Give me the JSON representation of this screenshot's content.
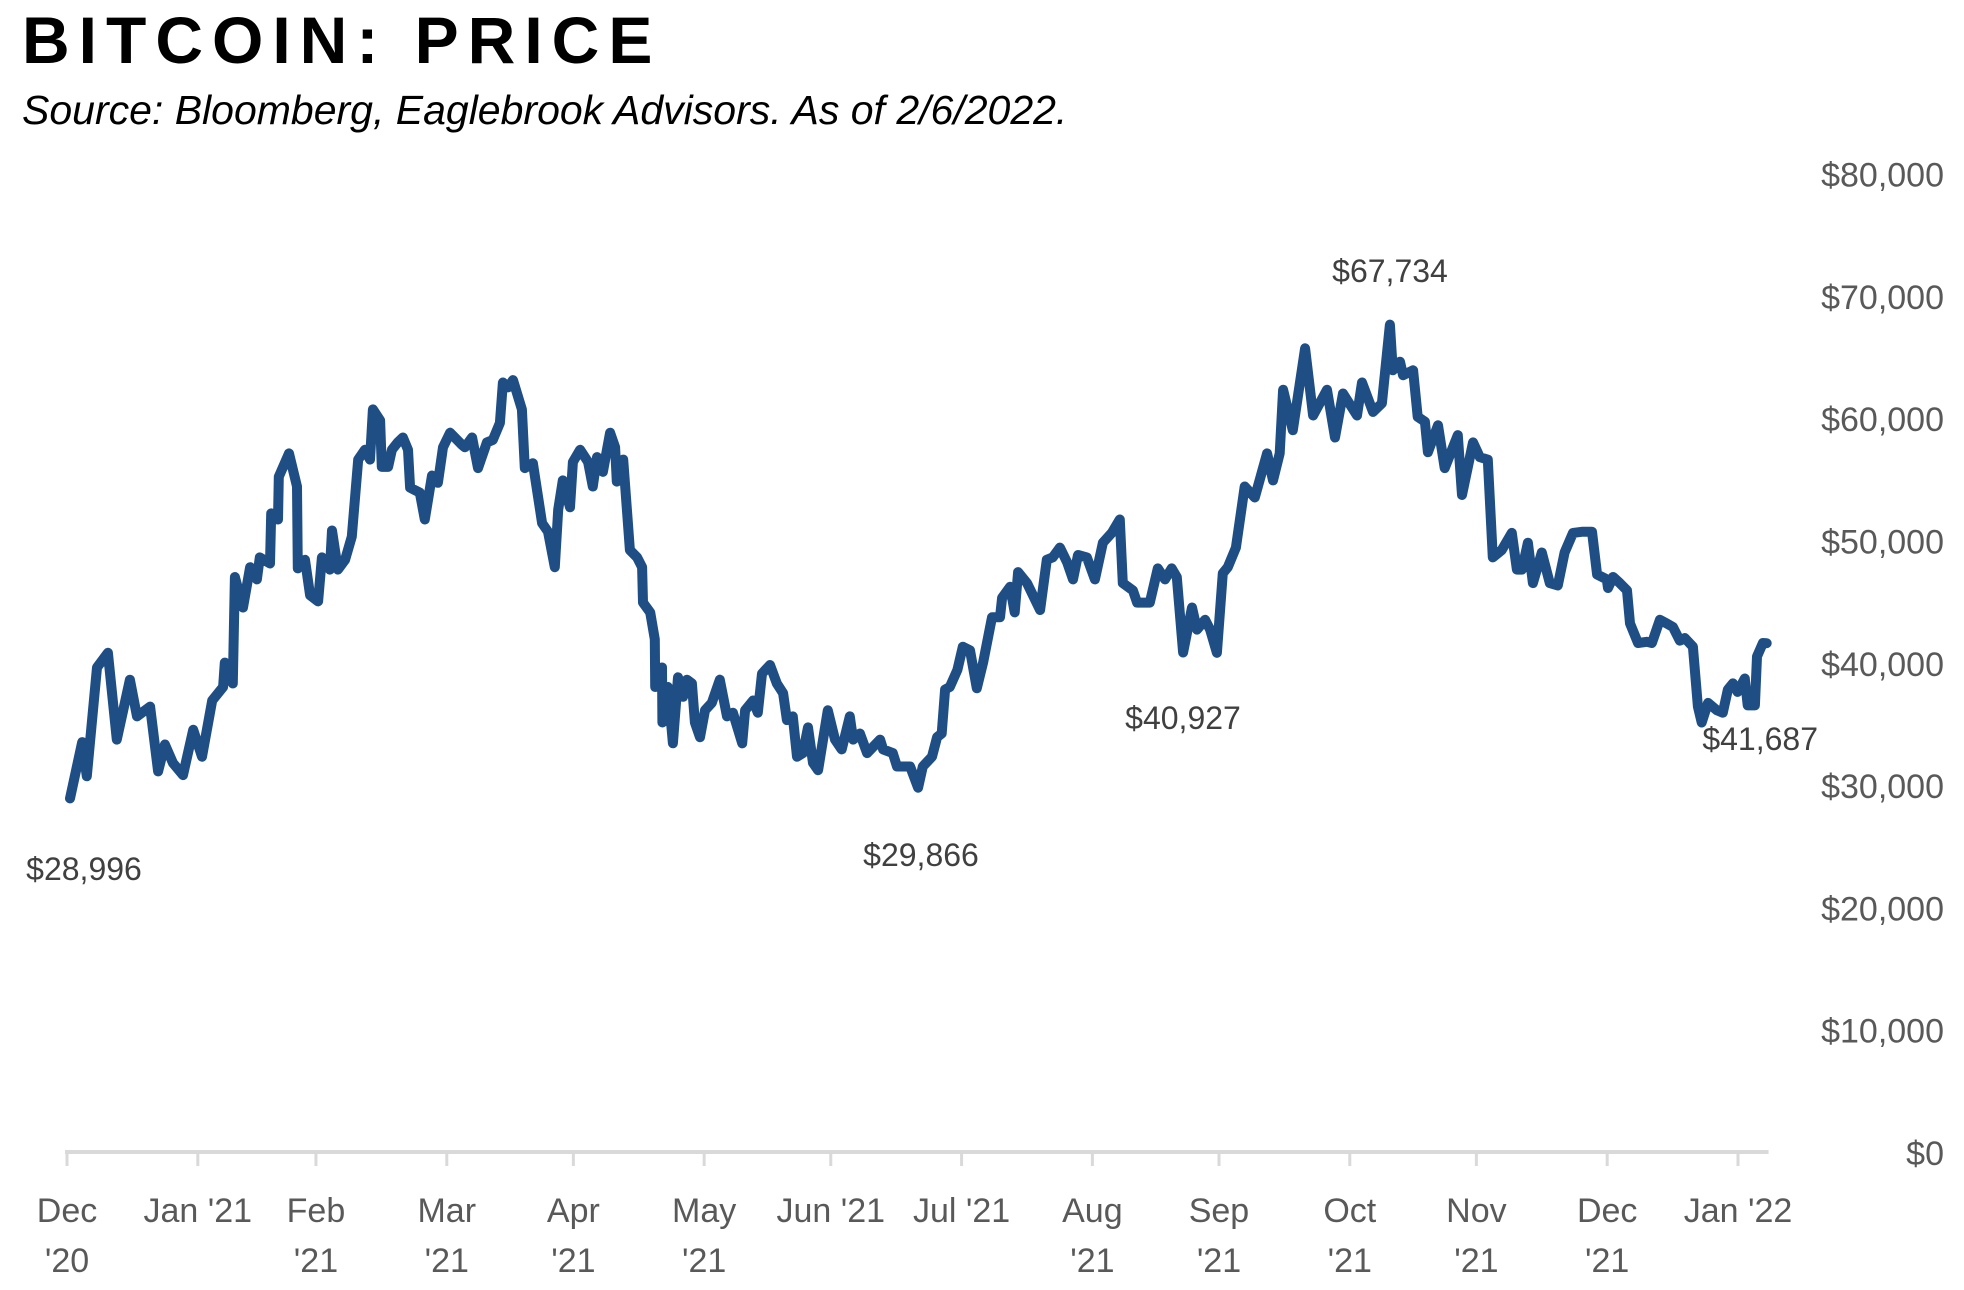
{
  "chart_data": {
    "type": "line",
    "title": "BITCOIN: PRICE",
    "subtitle": "Source: Bloomberg, Eaglebrook Advisors. As of 2/6/2022.",
    "xlabel": "",
    "ylabel": "",
    "x_unit": "days since start of axis (Dec '20)",
    "xlim": [
      0,
      403
    ],
    "ylim": [
      0,
      80000
    ],
    "y_axis_side": "right",
    "grid": false,
    "legend": "none",
    "line_color": "#1F4E85",
    "x_ticks": [
      {
        "day": 0,
        "line1": "Dec",
        "line2": "'20"
      },
      {
        "day": 31,
        "line1": "Jan '21",
        "line2": ""
      },
      {
        "day": 59,
        "line1": "Feb",
        "line2": "'21"
      },
      {
        "day": 90,
        "line1": "Mar",
        "line2": "'21"
      },
      {
        "day": 120,
        "line1": "Apr",
        "line2": "'21"
      },
      {
        "day": 151,
        "line1": "May",
        "line2": "'21"
      },
      {
        "day": 181,
        "line1": "Jun '21",
        "line2": ""
      },
      {
        "day": 212,
        "line1": "Jul '21",
        "line2": ""
      },
      {
        "day": 243,
        "line1": "Aug",
        "line2": "'21"
      },
      {
        "day": 273,
        "line1": "Sep",
        "line2": "'21"
      },
      {
        "day": 304,
        "line1": "Oct",
        "line2": "'21"
      },
      {
        "day": 334,
        "line1": "Nov",
        "line2": "'21"
      },
      {
        "day": 365,
        "line1": "Dec",
        "line2": "'21"
      },
      {
        "day": 396,
        "line1": "Jan '22",
        "line2": ""
      }
    ],
    "y_ticks": [
      {
        "value": 0,
        "label": "$0"
      },
      {
        "value": 10000,
        "label": "$10,000"
      },
      {
        "value": 20000,
        "label": "$20,000"
      },
      {
        "value": 30000,
        "label": "$30,000"
      },
      {
        "value": 40000,
        "label": "$40,000"
      },
      {
        "value": 50000,
        "label": "$50,000"
      },
      {
        "value": 60000,
        "label": "$60,000"
      },
      {
        "value": 70000,
        "label": "$70,000"
      },
      {
        "value": 80000,
        "label": "$80,000"
      }
    ],
    "annotations": [
      {
        "label": "$28,996",
        "day": 0.7,
        "value": 28996,
        "position": "below"
      },
      {
        "label": "$29,866",
        "day": 201.7,
        "value": 29866,
        "position": "below"
      },
      {
        "label": "$40,927",
        "day": 264.5,
        "value": 40927,
        "position": "below"
      },
      {
        "label": "$67,734",
        "day": 313.5,
        "value": 67734,
        "position": "above"
      },
      {
        "label": "$41,687",
        "day": 402.8,
        "value": 41687,
        "position": "below-left"
      }
    ],
    "series": [
      {
        "name": "Bitcoin Price",
        "x": [
          0.7,
          3.6,
          4.7,
          7.1,
          9.7,
          11.8,
          14.9,
          16.6,
          19.7,
          21.6,
          23.2,
          25.1,
          27.5,
          29.9,
          32.0,
          34.4,
          37.0,
          37.4,
          39.3,
          39.8,
          41.7,
          43.4,
          45.0,
          45.7,
          48.1,
          48.4,
          50.0,
          50.2,
          52.6,
          54.5,
          54.7,
          56.4,
          57.6,
          59.5,
          60.4,
          62.3,
          62.8,
          64.2,
          65.9,
          67.5,
          69.0,
          70.6,
          71.8,
          72.5,
          74.2,
          74.6,
          76.1,
          77.0,
          78.4,
          79.6,
          80.8,
          81.3,
          83.6,
          84.8,
          86.5,
          87.9,
          89.1,
          90.8,
          93.6,
          94.3,
          96.0,
          97.4,
          99.5,
          100.9,
          102.6,
          103.3,
          104.5,
          105.7,
          107.8,
          108.5,
          110.4,
          112.6,
          114.0,
          115.6,
          116.4,
          117.5,
          119.2,
          119.9,
          121.6,
          123.5,
          124.6,
          125.6,
          127.0,
          128.7,
          129.9,
          130.3,
          131.8,
          133.4,
          135.1,
          136.3,
          136.5,
          138.2,
          139.3,
          139.4,
          141.0,
          141.1,
          142.4,
          143.6,
          144.8,
          146.0,
          146.9,
          148.1,
          148.8,
          150.0,
          151.2,
          152.8,
          154.7,
          156.4,
          157.8,
          160.0,
          160.7,
          162.6,
          163.7,
          164.7,
          166.6,
          168.2,
          169.7,
          170.6,
          172.0,
          173.0,
          174.4,
          175.6,
          176.8,
          178.0,
          180.3,
          182.0,
          183.6,
          185.5,
          186.3,
          187.9,
          189.6,
          191.0,
          192.7,
          193.4,
          195.7,
          196.7,
          199.8,
          201.7,
          202.8,
          205.0,
          206.2,
          207.3,
          208.1,
          209.2,
          211.0,
          212.3,
          214.0,
          215.6,
          217.1,
          219.2,
          221.1,
          221.6,
          223.5,
          224.6,
          225.4,
          227.5,
          230.6,
          232.2,
          233.6,
          235.3,
          237.0,
          238.4,
          239.6,
          241.7,
          243.6,
          245.5,
          247.6,
          249.5,
          250.2,
          252.6,
          253.6,
          256.6,
          258.5,
          260.2,
          261.8,
          263.0,
          264.5,
          266.6,
          267.8,
          269.7,
          270.9,
          272.5,
          273.9,
          275.1,
          277.0,
          279.1,
          281.5,
          284.4,
          285.8,
          287.4,
          288.2,
          290.5,
          293.4,
          295.3,
          298.6,
          300.5,
          302.4,
          305.7,
          306.9,
          309.5,
          311.6,
          313.5,
          314.2,
          315.9,
          316.6,
          319.0,
          320.1,
          321.8,
          322.5,
          324.9,
          326.5,
          329.6,
          330.6,
          333.2,
          334.8,
          336.7,
          337.9,
          340.0,
          342.4,
          343.6,
          344.8,
          346.2,
          347.4,
          349.5,
          351.4,
          353.3,
          354.9,
          356.9,
          359.2,
          361.4,
          362.6,
          364.9,
          365.2,
          366.4,
          368.0,
          369.7,
          370.4,
          372.3,
          374.4,
          375.6,
          377.5,
          379.1,
          380.6,
          382.2,
          383.4,
          385.3,
          386.5,
          387.4,
          388.9,
          391.0,
          392.4,
          393.6,
          394.8,
          395.9,
          397.6,
          398.3,
          400.0,
          400.5,
          401.9,
          402.8
        ],
        "y": [
          28996,
          33600,
          30800,
          39700,
          40900,
          33800,
          38700,
          35700,
          36500,
          31200,
          33400,
          31900,
          30900,
          34600,
          32400,
          37000,
          38100,
          40100,
          38400,
          47100,
          44600,
          47900,
          46900,
          48700,
          48200,
          52300,
          51800,
          55300,
          57200,
          54500,
          47800,
          48500,
          45600,
          45100,
          48700,
          47700,
          50900,
          47700,
          48500,
          50400,
          56700,
          57500,
          56700,
          60800,
          59900,
          56100,
          56100,
          57500,
          58100,
          58500,
          57500,
          54400,
          54000,
          51800,
          55400,
          54800,
          57700,
          58900,
          57900,
          57700,
          58500,
          56000,
          58100,
          58300,
          59700,
          63000,
          62600,
          63200,
          60800,
          56000,
          56400,
          51500,
          50800,
          47900,
          52600,
          55000,
          52800,
          56500,
          57500,
          56500,
          54500,
          56900,
          55700,
          58900,
          57700,
          54900,
          56700,
          49300,
          48700,
          47900,
          45000,
          44200,
          42000,
          38100,
          39700,
          35200,
          38100,
          33500,
          38900,
          37300,
          38700,
          38400,
          35200,
          34000,
          36200,
          36800,
          38700,
          35700,
          36000,
          33500,
          36200,
          37000,
          36000,
          39200,
          39900,
          38400,
          37600,
          35400,
          35700,
          32400,
          32700,
          34800,
          31900,
          31300,
          36200,
          33800,
          33000,
          35700,
          33800,
          34300,
          32700,
          33200,
          33800,
          33000,
          32700,
          31600,
          31600,
          29866,
          31600,
          32400,
          34000,
          34300,
          37900,
          38100,
          39500,
          41400,
          41100,
          38000,
          40100,
          43800,
          43800,
          45400,
          46300,
          44200,
          47500,
          46600,
          44400,
          48500,
          48700,
          49500,
          48300,
          46900,
          48900,
          48700,
          46900,
          49900,
          50700,
          51800,
          46600,
          46000,
          45000,
          45000,
          47800,
          46900,
          47800,
          47100,
          40927,
          44600,
          42800,
          43600,
          42800,
          40900,
          47400,
          47900,
          49500,
          54500,
          53600,
          57200,
          55000,
          57200,
          62400,
          59100,
          65800,
          60300,
          62400,
          58500,
          62100,
          60300,
          63000,
          60600,
          61300,
          67734,
          64000,
          64700,
          63600,
          64000,
          60200,
          59800,
          57300,
          59500,
          56000,
          58700,
          53800,
          58100,
          56900,
          56700,
          48700,
          49300,
          50700,
          47700,
          47700,
          49900,
          46600,
          49100,
          46600,
          46400,
          49100,
          50700,
          50800,
          50800,
          47300,
          46900,
          46200,
          47100,
          46600,
          46000,
          43300,
          41700,
          41800,
          41700,
          43600,
          43300,
          43000,
          41900,
          42100,
          41400,
          36500,
          35200,
          36800,
          36200,
          36000,
          37900,
          38400,
          37700,
          38800,
          36600,
          36600,
          40600,
          41700,
          41687
        ]
      }
    ]
  }
}
